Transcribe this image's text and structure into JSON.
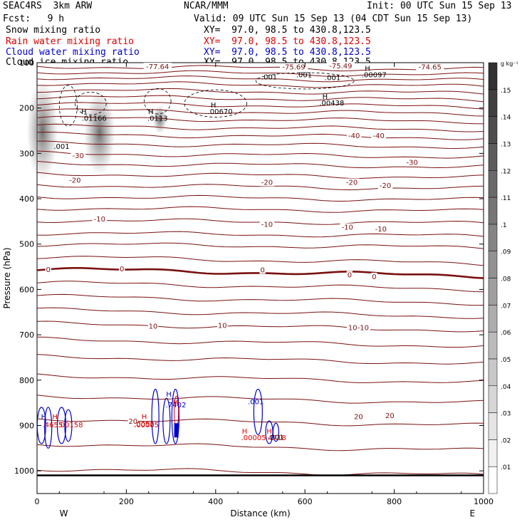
{
  "header": {
    "model": "SEAC4RS  3km ARW",
    "org": "NCAR/MMM",
    "init": "Init: 00 UTC Sun 15 Sep 13",
    "fcst": "Fcst:   9 h",
    "valid": "Valid: 09 UTC Sun 15 Sep 13 (04 CDT Sun 15 Sep 13)"
  },
  "fields": [
    {
      "name": "Snow mixing ratio",
      "xy": "XY=  97.0, 98.5 to 430.8,123.5",
      "color": "#000000"
    },
    {
      "name": "Rain water mixing ratio",
      "xy": "XY=  97.0, 98.5 to 430.8,123.5",
      "color": "#dd0000"
    },
    {
      "name": "Cloud water mixing ratio",
      "xy": "XY=  97.0, 98.5 to 430.8,123.5",
      "color": "#0000cc"
    },
    {
      "name": "Cloud ice mixing ratio",
      "xy": "XY=  97.0, 98.5 to 430.8,123.5",
      "color": "#000000"
    }
  ],
  "chart_data": {
    "type": "contour",
    "xlabel": "Distance (km)",
    "ylabel": "Pressure (hPa)",
    "xlim": [
      0,
      1000
    ],
    "ylim": [
      1050,
      100
    ],
    "xticks": [
      "0",
      "200",
      "400",
      "600",
      "800",
      "1000"
    ],
    "yticks": [
      "100",
      "200",
      "300",
      "400",
      "500",
      "600",
      "700",
      "800",
      "900",
      "1000"
    ],
    "x_end_labels": {
      "left": "W",
      "right": "E"
    },
    "temperature_isotherms": {
      "color": "#7a1010",
      "labels": [
        {
          "text": "-77.64",
          "x": 270,
          "p": 108
        },
        {
          "text": "-75.69",
          "x": 575,
          "p": 109
        },
        {
          "text": "-75.49",
          "x": 680,
          "p": 106
        },
        {
          "text": "-74.65",
          "x": 880,
          "p": 109
        },
        {
          "text": "-40",
          "x": 710,
          "p": 260
        },
        {
          "text": "-40",
          "x": 765,
          "p": 260
        },
        {
          "text": "-30",
          "x": 92,
          "p": 304
        },
        {
          "text": "-30",
          "x": 840,
          "p": 319
        },
        {
          "text": "-20",
          "x": 85,
          "p": 358
        },
        {
          "text": "-20",
          "x": 515,
          "p": 363
        },
        {
          "text": "-20",
          "x": 705,
          "p": 363
        },
        {
          "text": "-20",
          "x": 780,
          "p": 370
        },
        {
          "text": "-10",
          "x": 140,
          "p": 444
        },
        {
          "text": "-10",
          "x": 515,
          "p": 456
        },
        {
          "text": "-10",
          "x": 695,
          "p": 462
        },
        {
          "text": "-10",
          "x": 770,
          "p": 466
        },
        {
          "text": "0",
          "x": 25,
          "p": 555
        },
        {
          "text": "0",
          "x": 190,
          "p": 554
        },
        {
          "text": "0",
          "x": 505,
          "p": 556
        },
        {
          "text": "0",
          "x": 700,
          "p": 567
        },
        {
          "text": "0",
          "x": 755,
          "p": 571
        },
        {
          "text": "10",
          "x": 260,
          "p": 680
        },
        {
          "text": "10",
          "x": 415,
          "p": 679
        },
        {
          "text": "10-10",
          "x": 720,
          "p": 683
        },
        {
          "text": "20",
          "x": 215,
          "p": 890
        },
        {
          "text": "20",
          "x": 720,
          "p": 880
        },
        {
          "text": "20",
          "x": 790,
          "p": 877
        }
      ]
    },
    "cloud_ice_labels": [
      {
        "text": ".001",
        "x": 55,
        "p": 284
      },
      {
        "text": "H",
        "x": 105,
        "p": 207
      },
      {
        "text": ".01166",
        "x": 128,
        "p": 222
      },
      {
        "text": "H",
        "x": 255,
        "p": 207
      },
      {
        "text": ".0113",
        "x": 270,
        "p": 222
      },
      {
        "text": "H",
        "x": 395,
        "p": 193
      },
      {
        "text": ".00670",
        "x": 410,
        "p": 207
      },
      {
        "text": "H",
        "x": 645,
        "p": 174
      },
      {
        "text": ".00438",
        "x": 660,
        "p": 188
      },
      {
        "text": ".001",
        "x": 520,
        "p": 131
      },
      {
        "text": ".001",
        "x": 598,
        "p": 126
      },
      {
        "text": ".001",
        "x": 662,
        "p": 132
      },
      {
        "text": "H",
        "x": 740,
        "p": 112
      },
      {
        "text": ".00097",
        "x": 755,
        "p": 126
      }
    ],
    "cloud_water_labels": [
      {
        "text": "H",
        "x": 15,
        "p": 880
      },
      {
        "text": "H",
        "x": 295,
        "p": 830
      },
      {
        "text": ".7402",
        "x": 311,
        "p": 854
      },
      {
        "text": ".001",
        "x": 490,
        "p": 847
      }
    ],
    "rain_labels": [
      {
        "text": "H",
        "x": 40,
        "p": 880
      },
      {
        "text": ".4655",
        "x": 35,
        "p": 898
      },
      {
        "text": ".00158",
        "x": 75,
        "p": 898
      },
      {
        "text": "H",
        "x": 240,
        "p": 880
      },
      {
        "text": ".0052",
        "x": 240,
        "p": 896
      },
      {
        "text": ".00005",
        "x": 245,
        "p": 898
      },
      {
        "text": "H",
        "x": 310,
        "p": 848
      },
      {
        "text": "H",
        "x": 465,
        "p": 912
      },
      {
        "text": ".00005",
        "x": 485,
        "p": 926
      },
      {
        "text": "H",
        "x": 520,
        "p": 912
      },
      {
        "text": ".4718",
        "x": 535,
        "p": 926
      }
    ],
    "snow_label": {
      "text": ".001",
      "x": 535,
      "p": 925
    },
    "colorbar": {
      "unit": "g kg⁻¹",
      "ticks": [
        ".01",
        ".02",
        ".03",
        ".04",
        ".05",
        ".06",
        ".07",
        ".08",
        ".09",
        ".1",
        ".11",
        ".12",
        ".13",
        ".14",
        ".15"
      ]
    }
  }
}
